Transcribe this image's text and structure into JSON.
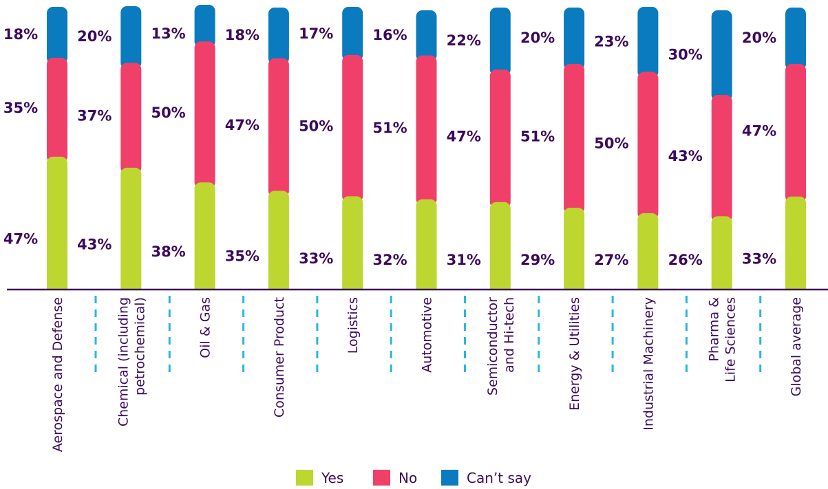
{
  "chart_data": {
    "type": "bar",
    "stacked": true,
    "categories": [
      [
        "Aerospace and Defense"
      ],
      [
        "Chemical (including",
        "petrochemical)"
      ],
      [
        "Oil & Gas"
      ],
      [
        "Consumer Product"
      ],
      [
        "Logistics"
      ],
      [
        "Automotive"
      ],
      [
        "Semiconductor",
        "and Hi-tech"
      ],
      [
        "Energy & Utilities"
      ],
      [
        "Industrial Machinery"
      ],
      [
        "Pharma &",
        "Life Sciences"
      ],
      [
        "Global average"
      ]
    ],
    "series": [
      {
        "name": "Yes",
        "color": "#bdd630",
        "values": [
          47,
          43,
          38,
          35,
          33,
          32,
          31,
          29,
          27,
          26,
          33
        ]
      },
      {
        "name": "No",
        "color": "#f0406a",
        "values": [
          35,
          37,
          50,
          47,
          50,
          51,
          47,
          51,
          50,
          43,
          47
        ]
      },
      {
        "name": "Can’t say",
        "color": "#0a7bbf",
        "values": [
          18,
          20,
          13,
          18,
          17,
          16,
          22,
          20,
          23,
          30,
          20
        ]
      }
    ],
    "value_suffix": "%",
    "ylim": [
      0,
      100
    ],
    "grid": false,
    "legend_position": "bottom"
  },
  "colors": {
    "label_text": "#3b0a5c",
    "baseline": "#3b0a5c",
    "separator": "#29b6e0"
  }
}
